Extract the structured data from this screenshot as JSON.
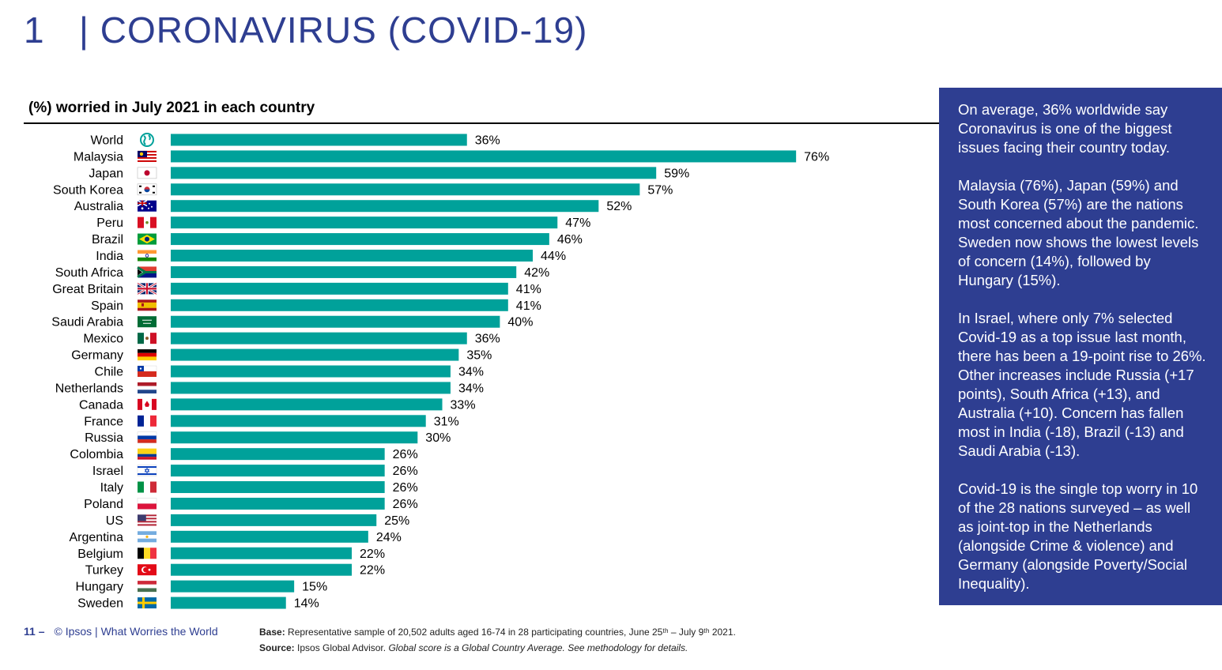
{
  "header": {
    "number": "1",
    "title": "| CORONAVIRUS (COVID-19)"
  },
  "chart_data": {
    "type": "bar",
    "orientation": "horizontal",
    "title": "(%) worried in July 2021 in each country",
    "xlim": [
      0,
      80
    ],
    "value_suffix": "%",
    "grid": false,
    "legend": "none",
    "bar_color": "#00a19a",
    "categories": [
      "World",
      "Malaysia",
      "Japan",
      "South Korea",
      "Australia",
      "Peru",
      "Brazil",
      "India",
      "South Africa",
      "Great Britain",
      "Spain",
      "Saudi Arabia",
      "Mexico",
      "Germany",
      "Chile",
      "Netherlands",
      "Canada",
      "France",
      "Russia",
      "Colombia",
      "Israel",
      "Italy",
      "Poland",
      "US",
      "Argentina",
      "Belgium",
      "Turkey",
      "Hungary",
      "Sweden"
    ],
    "values": [
      36,
      76,
      59,
      57,
      52,
      47,
      46,
      44,
      42,
      41,
      41,
      40,
      36,
      35,
      34,
      34,
      33,
      31,
      30,
      26,
      26,
      26,
      26,
      25,
      24,
      22,
      22,
      15,
      14
    ],
    "value_labels": [
      "36%",
      "76%",
      "59%",
      "57%",
      "52%",
      "47%",
      "46%",
      "44%",
      "42%",
      "41%",
      "41%",
      "40%",
      "36%",
      "35%",
      "34%",
      "34%",
      "33%",
      "31%",
      "30%",
      "26%",
      "26%",
      "26%",
      "26%",
      "25%",
      "24%",
      "22%",
      "22%",
      "15%",
      "14%"
    ],
    "icons": [
      "globe-icon",
      "malaysia-flag-icon",
      "japan-flag-icon",
      "south-korea-flag-icon",
      "australia-flag-icon",
      "peru-flag-icon",
      "brazil-flag-icon",
      "india-flag-icon",
      "south-africa-flag-icon",
      "great-britain-flag-icon",
      "spain-flag-icon",
      "saudi-arabia-flag-icon",
      "mexico-flag-icon",
      "germany-flag-icon",
      "chile-flag-icon",
      "netherlands-flag-icon",
      "canada-flag-icon",
      "france-flag-icon",
      "russia-flag-icon",
      "colombia-flag-icon",
      "israel-flag-icon",
      "italy-flag-icon",
      "poland-flag-icon",
      "us-flag-icon",
      "argentina-flag-icon",
      "belgium-flag-icon",
      "turkey-flag-icon",
      "hungary-flag-icon",
      "sweden-flag-icon"
    ]
  },
  "side_panel": {
    "background": "#2e3e91",
    "paragraphs": [
      "On average, 36% worldwide say Coronavirus is one of the biggest issues facing their country today.",
      "Malaysia (76%), Japan (59%) and South Korea (57%) are the nations most concerned about the pandemic. Sweden now shows the lowest levels of concern (14%), followed by Hungary (15%).",
      "In Israel, where only 7% selected Covid-19 as a top issue last month, there has been a 19-point rise to 26%. Other increases include Russia (+17 points), South Africa (+13), and Australia (+10). Concern has fallen most in India (-18), Brazil (-13) and Saudi Arabia (-13).",
      "Covid-19 is the single top worry in 10 of the 28 nations surveyed – as well as joint-top in the Netherlands (alongside Crime & violence) and Germany (alongside Poverty/Social Inequality)."
    ]
  },
  "footer": {
    "page": "11 –",
    "brand": "© Ipsos | What Worries the World",
    "base_label": "Base:",
    "base_text": "Representative sample of 20,502 adults aged 16-74 in 28 participating countries, June 25ᵗʰ – July 9ᵗʰ 2021.",
    "source_label": "Source:",
    "source_text": "Ipsos Global Advisor.",
    "source_note": "Global score is a Global Country Average. See methodology for details."
  }
}
